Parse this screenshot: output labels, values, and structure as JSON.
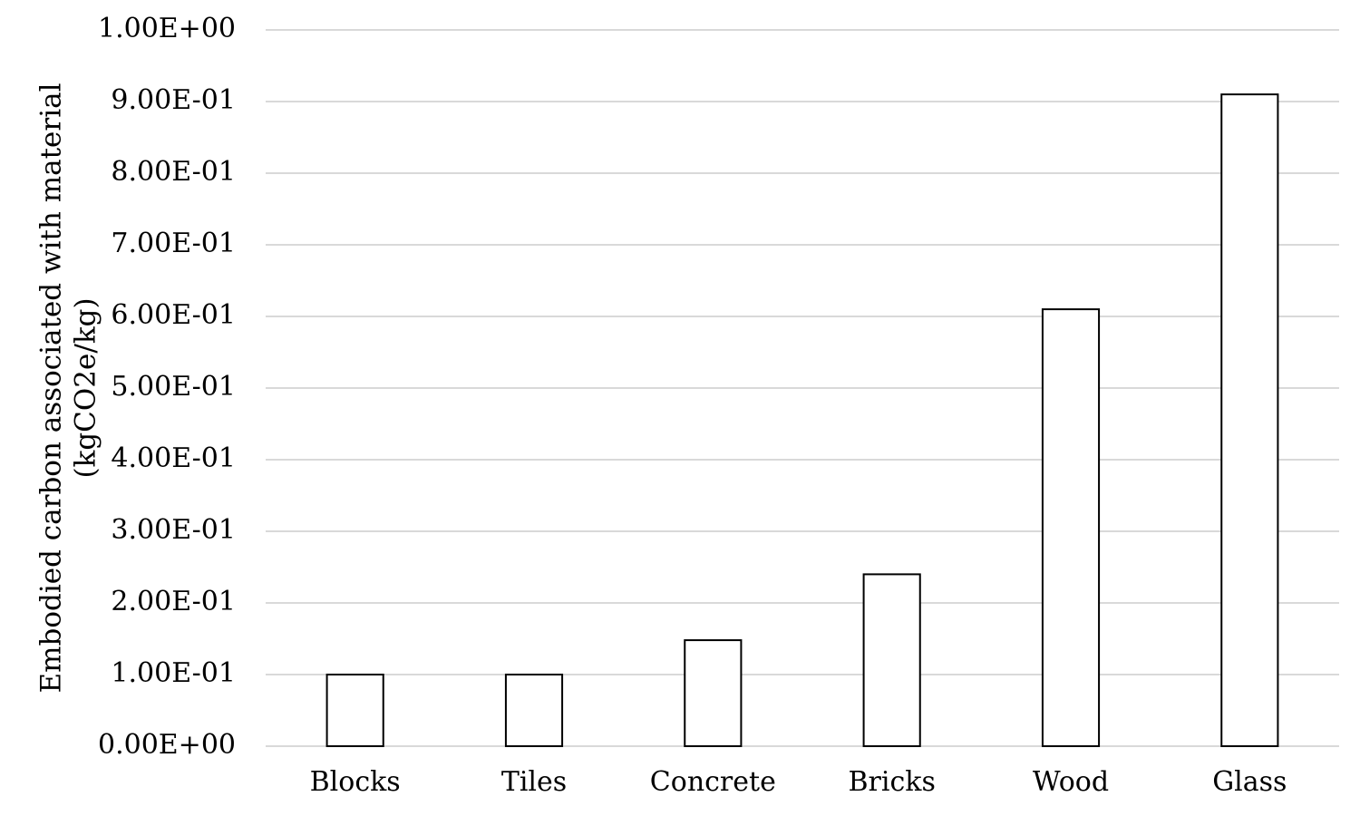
{
  "chart_data": {
    "type": "bar",
    "categories": [
      "Blocks",
      "Tiles",
      "Concrete",
      "Bricks",
      "Wood",
      "Glass"
    ],
    "values": [
      0.1,
      0.1,
      0.148,
      0.24,
      0.61,
      0.91
    ],
    "title": "",
    "xlabel": "",
    "ylabel_lines": [
      "Embodied carbon associated with material",
      "(kgCO2e/kg)"
    ],
    "ylim": [
      0,
      1.0
    ],
    "yticks": [
      0,
      0.1,
      0.2,
      0.3,
      0.4,
      0.5,
      0.6,
      0.7,
      0.8,
      0.9,
      1.0
    ],
    "ytick_labels": [
      "0.00E+00",
      "1.00E-01",
      "2.00E-01",
      "3.00E-01",
      "4.00E-01",
      "5.00E-01",
      "6.00E-01",
      "7.00E-01",
      "8.00E-01",
      "9.00E-01",
      "1.00E+00"
    ],
    "grid": true,
    "legend": "none",
    "bar_fill": "#ffffff",
    "bar_stroke": "#000000",
    "grid_color": "#d9d9d9"
  }
}
